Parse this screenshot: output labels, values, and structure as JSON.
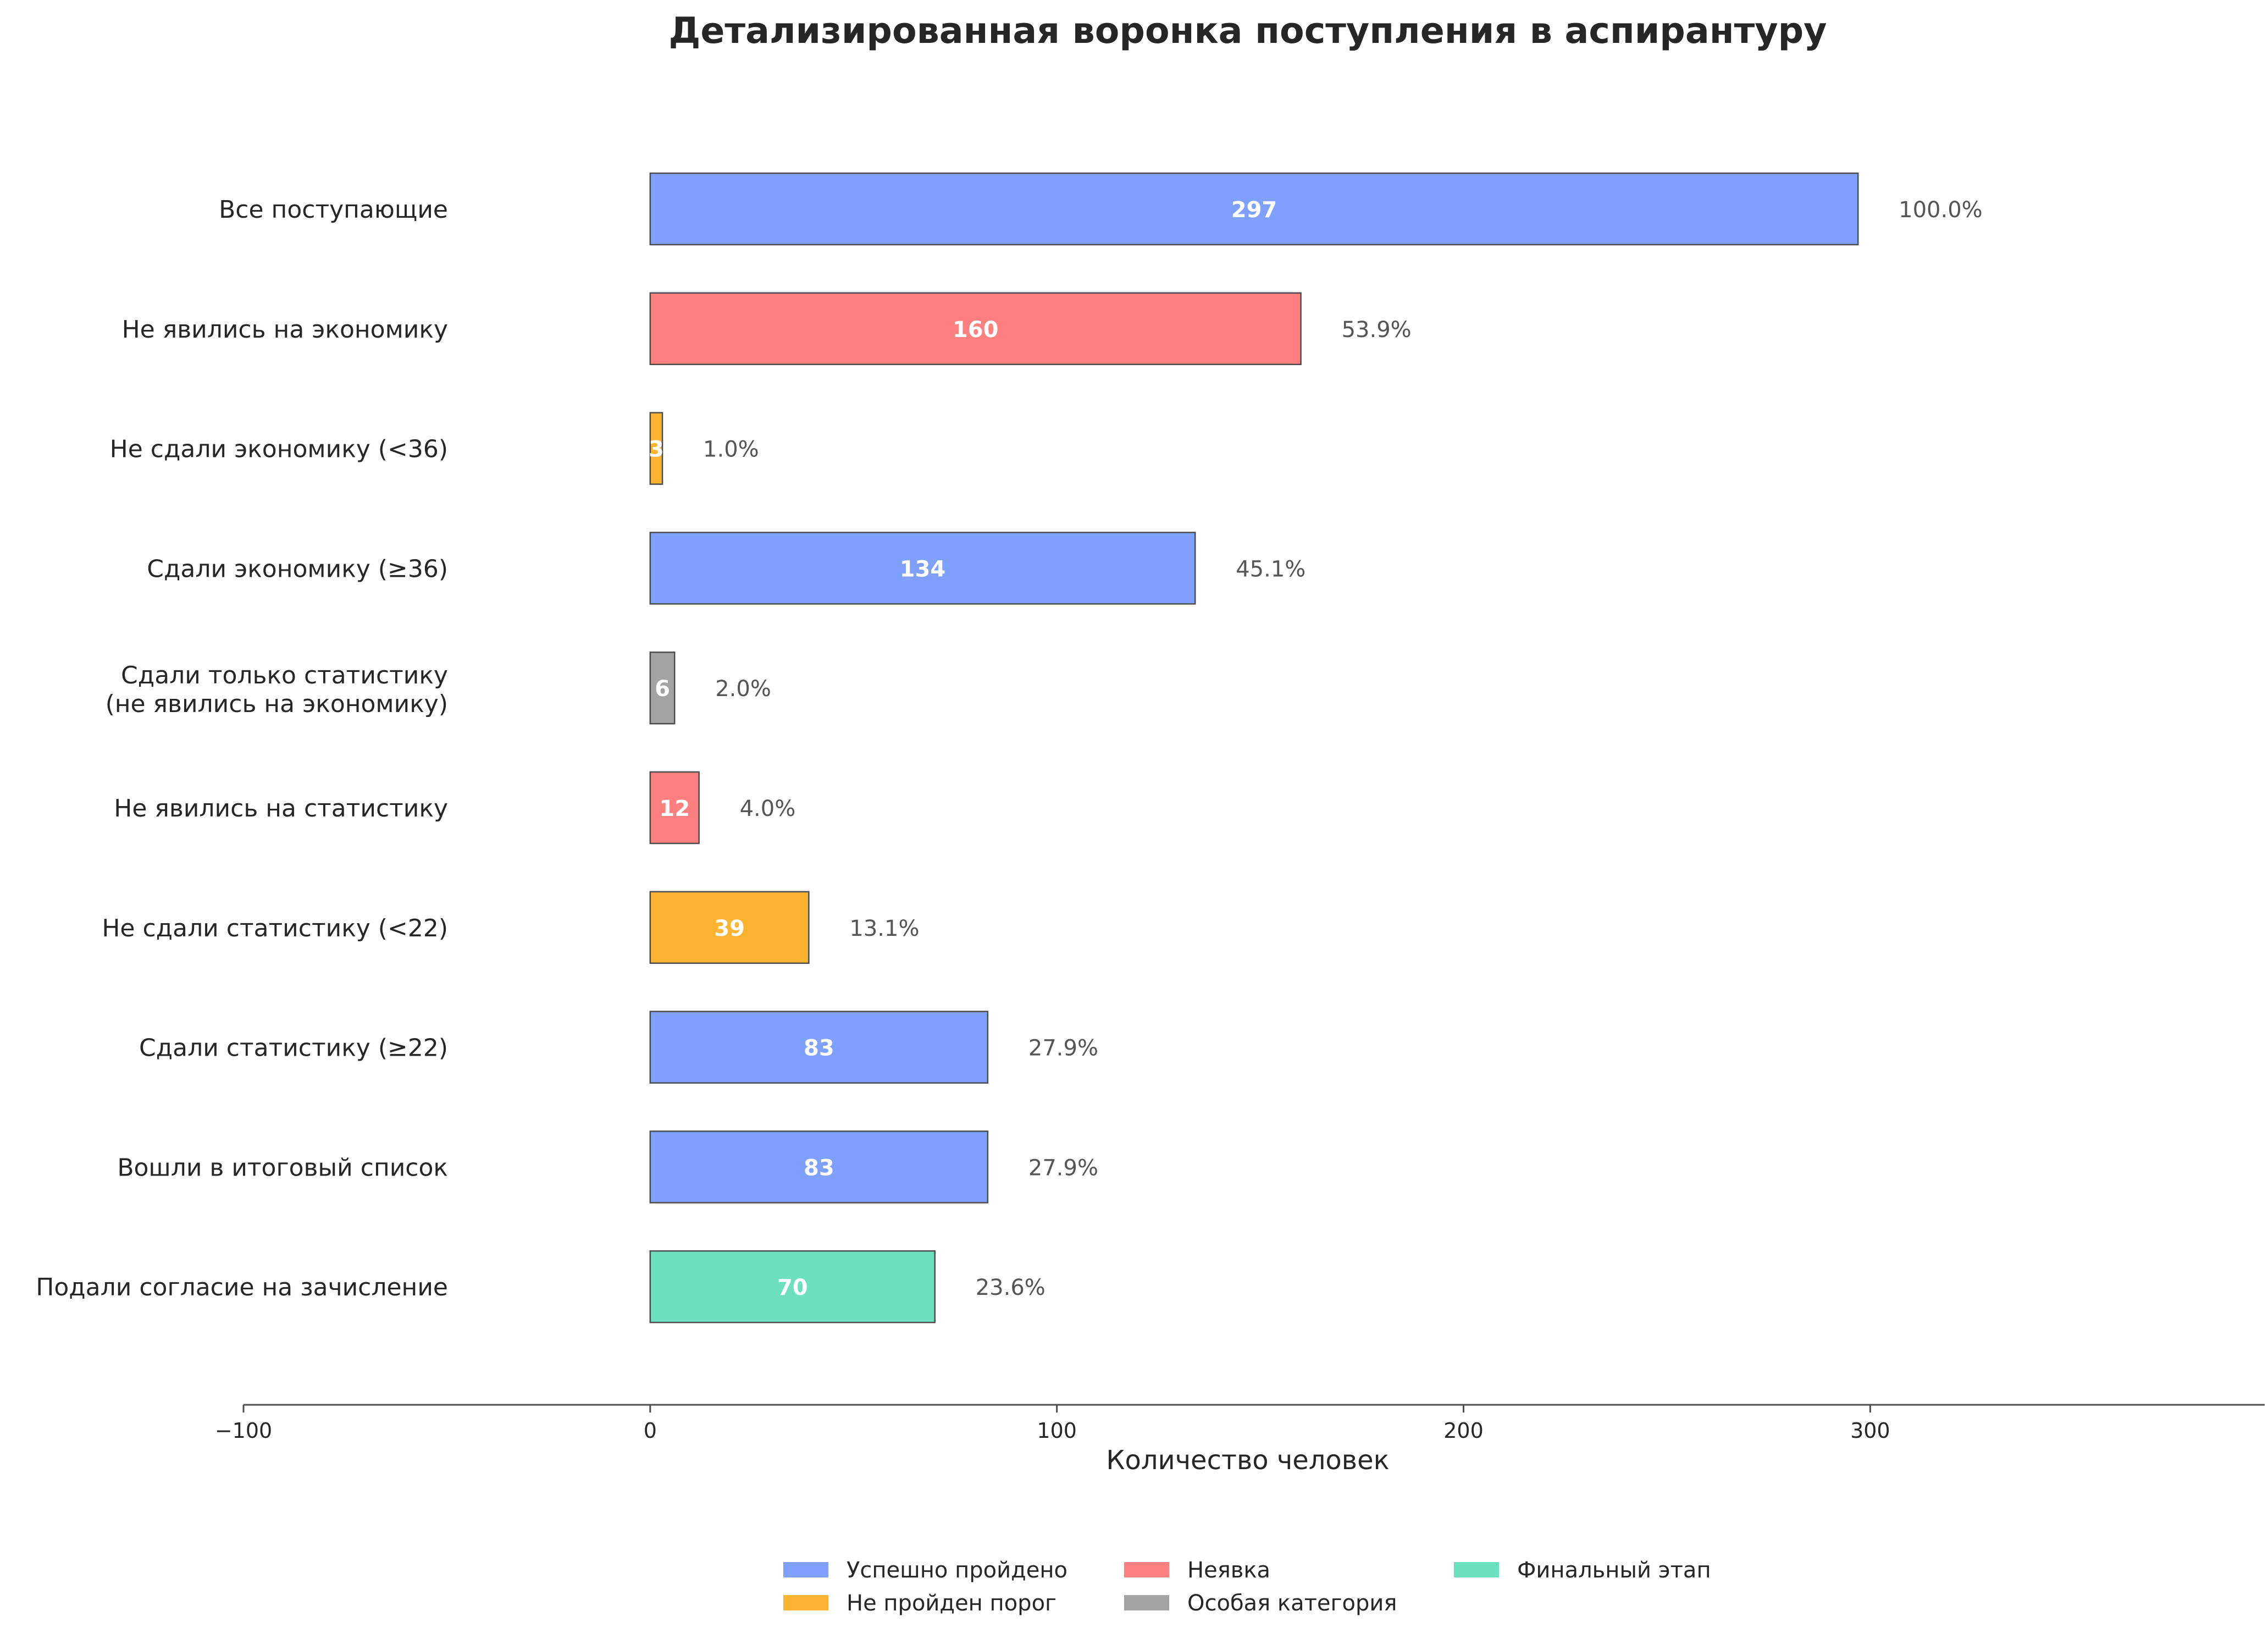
{
  "chart_data": {
    "type": "bar",
    "orientation": "horizontal",
    "title": "Детализированная воронка поступления в аспирантуру",
    "xlabel": "Количество человек",
    "xlim": [
      -100,
      397
    ],
    "xticks": [
      -100,
      0,
      100,
      200,
      300
    ],
    "xtick_labels": [
      "−100",
      "0",
      "100",
      "200",
      "300"
    ],
    "grid": false,
    "legend_position": "bottom",
    "colors": {
      "success": "#7fa1fd",
      "fail": "#fbb432",
      "absent": "#fd7f7f",
      "special": "#a3a3a3",
      "final": "#6bdfbe",
      "bar_edge": "#4d4d4d",
      "axis": "#4d4d4d",
      "value_text": "#ffffff",
      "pct_text": "#555555"
    },
    "bars": [
      {
        "label": "Все поступающие",
        "value": 297,
        "value_label": "297",
        "percent": "100.0%",
        "category": "success"
      },
      {
        "label": "Не явились на экономику",
        "value": 160,
        "value_label": "160",
        "percent": "53.9%",
        "category": "absent"
      },
      {
        "label": "Не сдали экономику (<36)",
        "value": 3,
        "value_label": "3",
        "percent": "1.0%",
        "category": "fail"
      },
      {
        "label": "Сдали экономику (≥36)",
        "value": 134,
        "value_label": "134",
        "percent": "45.1%",
        "category": "success"
      },
      {
        "label": "Сдали только статистику",
        "label2": "(не явились на экономику)",
        "value": 6,
        "value_label": "6",
        "percent": "2.0%",
        "category": "special"
      },
      {
        "label": "Не явились на статистику",
        "value": 12,
        "value_label": "12",
        "percent": "4.0%",
        "category": "absent"
      },
      {
        "label": "Не сдали статистику (<22)",
        "value": 39,
        "value_label": "39",
        "percent": "13.1%",
        "category": "fail"
      },
      {
        "label": "Сдали статистику (≥22)",
        "value": 83,
        "value_label": "83",
        "percent": "27.9%",
        "category": "success"
      },
      {
        "label": "Вошли в итоговый список",
        "value": 83,
        "value_label": "83",
        "percent": "27.9%",
        "category": "success"
      },
      {
        "label": "Подали согласие на зачисление",
        "value": 70,
        "value_label": "70",
        "percent": "23.6%",
        "category": "final"
      }
    ],
    "legend": [
      {
        "label": "Успешно пройдено",
        "category": "success"
      },
      {
        "label": "Не пройден порог",
        "category": "fail"
      },
      {
        "label": "Неявка",
        "category": "absent"
      },
      {
        "label": "Особая категория",
        "category": "special"
      },
      {
        "label": "Финальный этап",
        "category": "final"
      }
    ]
  }
}
